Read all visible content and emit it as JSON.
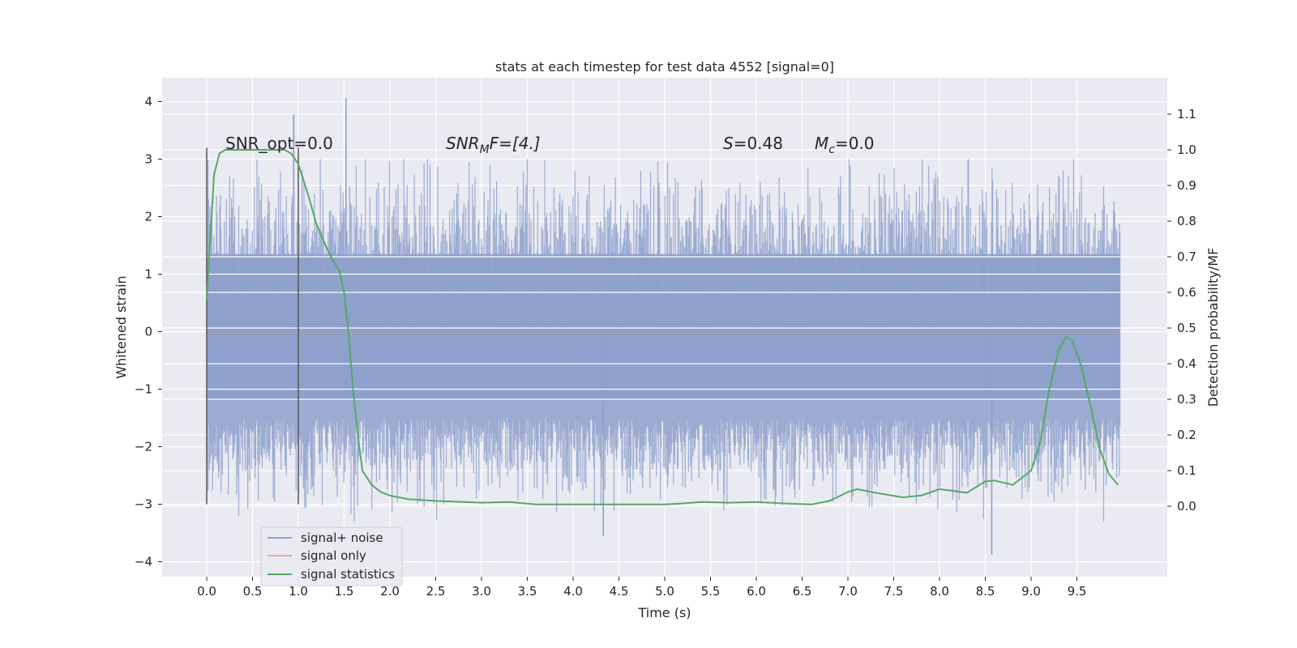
{
  "chart_data": {
    "type": "line",
    "title": "stats at each timestep for test data 4552 [signal=0]",
    "xlabel": "Time (s)",
    "ylabel_left": "Whitened strain",
    "ylabel_right": "Detection probability/MF",
    "xlim": [
      -0.5,
      10.5
    ],
    "ylim_left": [
      -4.2,
      4.4
    ],
    "ylim_right": [
      -0.2,
      1.2
    ],
    "xticks": [
      "0.0",
      "0.5",
      "1.0",
      "1.5",
      "2.0",
      "2.5",
      "3.0",
      "3.5",
      "4.0",
      "4.5",
      "5.0",
      "5.5",
      "6.0",
      "6.5",
      "7.0",
      "7.5",
      "8.0",
      "8.5",
      "9.0",
      "9.5"
    ],
    "yticks_left": [
      "4",
      "3",
      "2",
      "1",
      "0",
      "−1",
      "−2",
      "−3",
      "−4"
    ],
    "yticks_right": [
      "1.1",
      "1.0",
      "0.9",
      "0.8",
      "0.7",
      "0.6",
      "0.5",
      "0.4",
      "0.3",
      "0.2",
      "0.1",
      "0.0"
    ],
    "grid": true,
    "legend_position": "lower-left",
    "annotations": {
      "snr_opt": "SNR_opt=0.0",
      "snr_mf_prefix": "SNR",
      "snr_mf_sub": "M",
      "snr_mf_suffix": "F=[4.]",
      "s_prefix": "S",
      "s_suffix": "=0.48",
      "mc_prefix": "M",
      "mc_sub": "c",
      "mc_suffix": "=0.0"
    },
    "vlines": [
      {
        "x": 0.0,
        "ymin": -3.0,
        "ymax": 3.2
      },
      {
        "x": 1.0,
        "ymin": -3.0,
        "ymax": 3.2
      }
    ],
    "series": [
      {
        "name": "signal+ noise",
        "axis": "left",
        "color": "#8da0cb",
        "description_range": [
          -3.87,
          4.06
        ],
        "x_range": [
          0.0,
          9.97
        ],
        "peaks": [
          {
            "x": 1.52,
            "y": 4.06
          },
          {
            "x": 0.95,
            "y": 3.78
          },
          {
            "x": 8.57,
            "y": -3.87
          },
          {
            "x": 4.33,
            "y": -3.55
          }
        ]
      },
      {
        "name": "signal only",
        "axis": "left",
        "color": "#e5ae92",
        "x": [
          0.0,
          9.97
        ],
        "y": [
          0.0,
          0.0
        ]
      },
      {
        "name": "signal statistics",
        "axis": "right",
        "color": "#55a868",
        "x": [
          0.0,
          0.08,
          0.14,
          0.2,
          0.3,
          0.5,
          0.7,
          0.85,
          0.92,
          1.0,
          1.1,
          1.2,
          1.3,
          1.38,
          1.45,
          1.5,
          1.55,
          1.6,
          1.65,
          1.7,
          1.8,
          1.9,
          2.0,
          2.2,
          2.5,
          3.0,
          3.3,
          3.6,
          4.0,
          4.5,
          5.0,
          5.2,
          5.4,
          5.7,
          6.0,
          6.3,
          6.6,
          6.8,
          7.0,
          7.1,
          7.3,
          7.6,
          7.8,
          8.0,
          8.3,
          8.5,
          8.6,
          8.8,
          9.0,
          9.1,
          9.2,
          9.3,
          9.38,
          9.45,
          9.55,
          9.65,
          9.75,
          9.85,
          9.95
        ],
        "y": [
          0.58,
          0.93,
          0.99,
          1.0,
          1.0,
          1.0,
          1.0,
          1.0,
          0.99,
          0.96,
          0.88,
          0.79,
          0.73,
          0.69,
          0.66,
          0.6,
          0.48,
          0.32,
          0.2,
          0.1,
          0.06,
          0.04,
          0.03,
          0.02,
          0.015,
          0.01,
          0.012,
          0.005,
          0.005,
          0.005,
          0.005,
          0.008,
          0.012,
          0.01,
          0.012,
          0.008,
          0.005,
          0.015,
          0.04,
          0.048,
          0.038,
          0.025,
          0.03,
          0.048,
          0.038,
          0.07,
          0.072,
          0.06,
          0.1,
          0.18,
          0.33,
          0.44,
          0.475,
          0.465,
          0.39,
          0.28,
          0.16,
          0.09,
          0.06
        ]
      }
    ]
  }
}
